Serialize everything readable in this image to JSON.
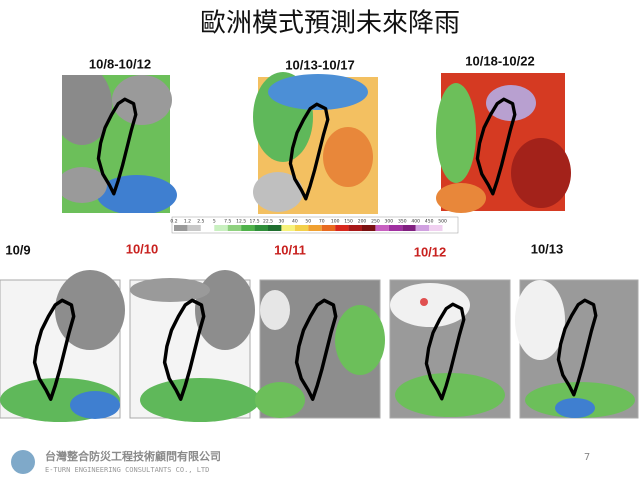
{
  "header": {
    "title": "歐洲模式預測未來降雨"
  },
  "top_panels": [
    {
      "label": "10/8-10/12"
    },
    {
      "label": "10/13-10/17"
    },
    {
      "label": "10/18-10/22"
    }
  ],
  "colorbar": {
    "labels": [
      "0.2",
      "1.2",
      "2.5",
      "5",
      "7.5",
      "12.5",
      "17.5",
      "22.5",
      "30",
      "40",
      "50",
      "70",
      "100",
      "150",
      "200",
      "250",
      "300",
      "350",
      "400",
      "450",
      "500"
    ]
  },
  "bottom_panels": [
    {
      "label": "10/9"
    },
    {
      "label": "10/10"
    },
    {
      "label": "10/11"
    },
    {
      "label": "10/12"
    },
    {
      "label": "10/13"
    }
  ],
  "footer": {
    "company": "台灣整合防災工程技術顧問有限公司",
    "company_en": "E-TURN ENGINEERING CONSULTANTS CO., LTD",
    "page": "7"
  }
}
